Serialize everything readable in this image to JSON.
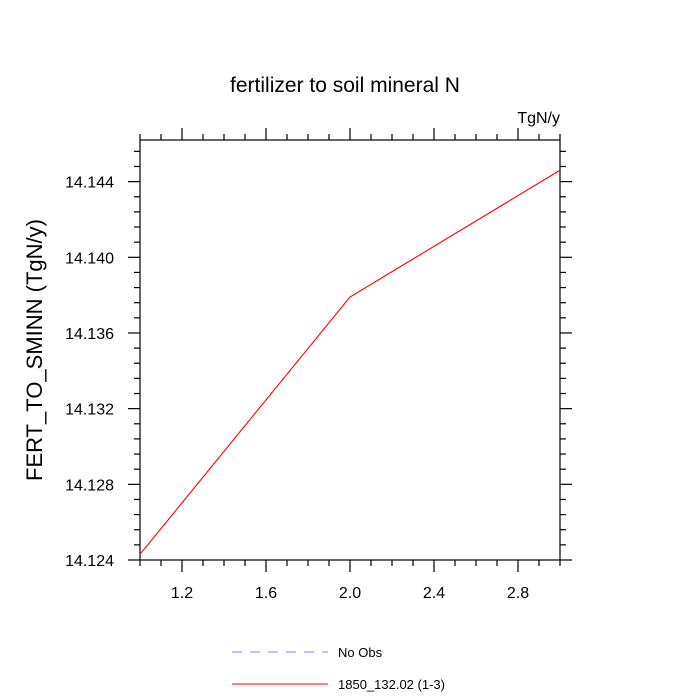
{
  "chart_data": {
    "type": "line",
    "title": "fertilizer to soil mineral N",
    "units_label": "TgN/y",
    "ylabel": "FERT_TO_SMINN  (TgN/y)",
    "xlabel": "",
    "xlim": [
      1.0,
      3.0
    ],
    "ylim": [
      14.124,
      14.1462
    ],
    "x_ticks": [
      1.2,
      1.6,
      2.0,
      2.4,
      2.8
    ],
    "x_tick_labels": [
      "1.2",
      "1.6",
      "2.0",
      "2.4",
      "2.8"
    ],
    "y_ticks": [
      14.124,
      14.128,
      14.132,
      14.136,
      14.14,
      14.144
    ],
    "y_tick_labels": [
      "14.124",
      "14.128",
      "14.132",
      "14.136",
      "14.140",
      "14.144"
    ],
    "grid": false,
    "legend_position": "bottom",
    "series": [
      {
        "name": "1850_132.02 (1-3)",
        "color": "#ff0000",
        "dash": "solid",
        "x": [
          1.0,
          2.0,
          3.0
        ],
        "y": [
          14.1243,
          14.1379,
          14.1446
        ]
      }
    ],
    "legend": [
      {
        "label": "No Obs",
        "color": "#8080ff",
        "dash": "dashed"
      },
      {
        "label": "1850_132.02 (1-3)",
        "color": "#ff0000",
        "dash": "solid"
      }
    ]
  }
}
